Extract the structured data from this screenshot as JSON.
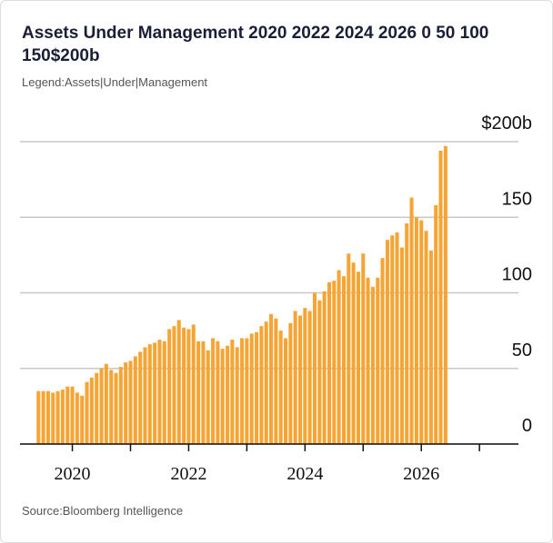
{
  "chart_data": {
    "type": "bar",
    "title": "Assets Under Management 2020 2022 2024 2026 0 50 100 150$200b",
    "legend_text": "Legend:Assets|Under|Management",
    "source": "Source:Bloomberg Intelligence",
    "color": "#f6a534",
    "x": [
      2019.417,
      2019.5,
      2019.583,
      2019.667,
      2019.75,
      2019.833,
      2019.917,
      2020.0,
      2020.083,
      2020.167,
      2020.25,
      2020.333,
      2020.417,
      2020.5,
      2020.583,
      2020.667,
      2020.75,
      2020.833,
      2020.917,
      2021.0,
      2021.083,
      2021.167,
      2021.25,
      2021.333,
      2021.417,
      2021.5,
      2021.583,
      2021.667,
      2021.75,
      2021.833,
      2021.917,
      2022.0,
      2022.083,
      2022.167,
      2022.25,
      2022.333,
      2022.417,
      2022.5,
      2022.583,
      2022.667,
      2022.75,
      2022.833,
      2022.917,
      2023.0,
      2023.083,
      2023.167,
      2023.25,
      2023.333,
      2023.417,
      2023.5,
      2023.583,
      2023.667,
      2023.75,
      2023.833,
      2023.917,
      2024.0,
      2024.083,
      2024.167,
      2024.25,
      2024.333,
      2024.417,
      2024.5,
      2024.583,
      2024.667,
      2024.75,
      2024.833,
      2024.917,
      2025.0,
      2025.083,
      2025.167,
      2025.25,
      2025.333,
      2025.417,
      2025.5,
      2025.583,
      2025.667,
      2025.75,
      2025.833,
      2025.917,
      2026.0,
      2026.083,
      2026.167,
      2026.25,
      2026.333,
      2026.417
    ],
    "values": [
      35,
      35,
      35,
      34,
      35,
      36,
      38,
      38,
      34,
      32,
      41,
      44,
      47,
      50,
      53,
      49,
      47,
      51,
      54,
      55,
      58,
      61,
      64,
      66,
      67,
      69,
      68,
      76,
      78,
      82,
      77,
      76,
      79,
      68,
      68,
      62,
      70,
      68,
      63,
      65,
      69,
      64,
      70,
      70,
      73,
      74,
      78,
      81,
      86,
      83,
      75,
      70,
      80,
      88,
      85,
      90,
      88,
      100,
      95,
      101,
      107,
      108,
      115,
      111,
      126,
      120,
      114,
      126,
      110,
      104,
      110,
      123,
      135,
      138,
      140,
      130,
      146,
      163,
      150,
      148,
      141,
      128,
      158,
      194,
      197
    ],
    "xlim": [
      2019.1,
      2027.67
    ],
    "xticks": [
      2020,
      2022,
      2024,
      2026
    ],
    "xminor_ticks": [
      2021,
      2023,
      2025,
      2027
    ],
    "ylim": [
      0,
      200
    ],
    "yticks": [
      0,
      50,
      100,
      150,
      {
        "value": 200,
        "label": "$200b"
      }
    ],
    "grid": true
  }
}
